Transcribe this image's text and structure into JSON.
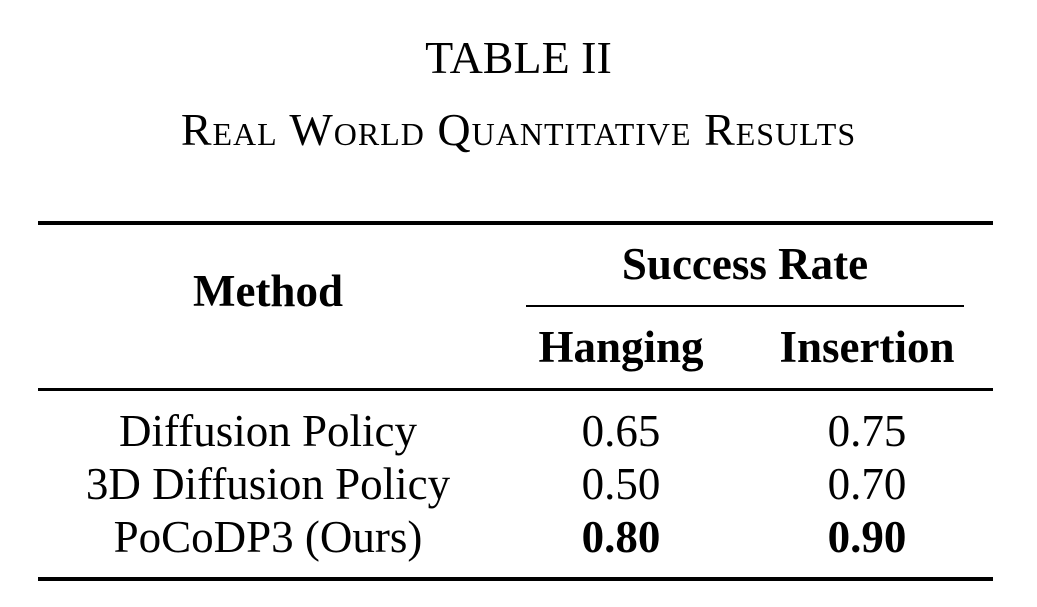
{
  "caption": {
    "label": "TABLE II",
    "title": "Real World Quantitative Results"
  },
  "table": {
    "headers": {
      "method": "Method",
      "group": "Success Rate",
      "hanging": "Hanging",
      "insertion": "Insertion"
    },
    "rows": [
      {
        "method": "Diffusion Policy",
        "hanging": "0.65",
        "insertion": "0.75",
        "best": false
      },
      {
        "method": "3D Diffusion Policy",
        "hanging": "0.50",
        "insertion": "0.70",
        "best": false
      },
      {
        "method": "PoCoDP3 (Ours)",
        "hanging": "0.80",
        "insertion": "0.90",
        "best": true
      }
    ]
  }
}
